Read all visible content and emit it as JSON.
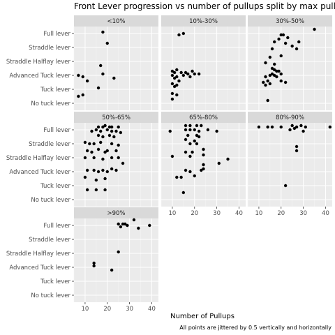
{
  "chart_data": {
    "type": "scatter",
    "title": "Front Lever progression vs number of pullups split by max pullup",
    "xlabel": "Number of Pullups",
    "ylabel": "",
    "caption": "All points are jittered by 0.5 vertically and horizontally",
    "xlim": [
      5,
      43
    ],
    "x_ticks": [
      10,
      20,
      30,
      40
    ],
    "categories": [
      "No tuck lever",
      "Tuck lever",
      "Advanced Tuck lever",
      "Straddle Halflay lever",
      "Straddle lever",
      "Full lever"
    ],
    "grid": true,
    "facets": [
      {
        "label": "<10%",
        "points": [
          {
            "x": 18,
            "y": 5.1
          },
          {
            "x": 20,
            "y": 4.3
          },
          {
            "x": 17,
            "y": 2.7
          },
          {
            "x": 18,
            "y": 2.1
          },
          {
            "x": 7,
            "y": 2.0
          },
          {
            "x": 9,
            "y": 1.9
          },
          {
            "x": 11,
            "y": 1.6
          },
          {
            "x": 23,
            "y": 1.8
          },
          {
            "x": 16,
            "y": 1.1
          },
          {
            "x": 7,
            "y": 0.5
          },
          {
            "x": 9,
            "y": 0.6
          }
        ]
      },
      {
        "label": "10%-30%",
        "points": [
          {
            "x": 13,
            "y": 4.9
          },
          {
            "x": 15,
            "y": 5.0
          },
          {
            "x": 10,
            "y": 2.3
          },
          {
            "x": 11,
            "y": 2.2
          },
          {
            "x": 12,
            "y": 2.4
          },
          {
            "x": 14,
            "y": 2.2
          },
          {
            "x": 15,
            "y": 2.0
          },
          {
            "x": 16,
            "y": 2.2
          },
          {
            "x": 17,
            "y": 2.1
          },
          {
            "x": 19,
            "y": 2.3
          },
          {
            "x": 20,
            "y": 2.1
          },
          {
            "x": 22,
            "y": 2.1
          },
          {
            "x": 10,
            "y": 2.0
          },
          {
            "x": 12,
            "y": 1.9
          },
          {
            "x": 11,
            "y": 1.8
          },
          {
            "x": 13,
            "y": 1.6
          },
          {
            "x": 18,
            "y": 1.9
          },
          {
            "x": 10,
            "y": 1.4
          },
          {
            "x": 11,
            "y": 1.2
          },
          {
            "x": 12,
            "y": 1.3
          },
          {
            "x": 10,
            "y": 0.7
          },
          {
            "x": 12,
            "y": 0.6
          },
          {
            "x": 10,
            "y": 0.3
          }
        ]
      },
      {
        "label": "30%-50%",
        "points": [
          {
            "x": 35,
            "y": 5.3
          },
          {
            "x": 20,
            "y": 4.9
          },
          {
            "x": 21,
            "y": 4.9
          },
          {
            "x": 23,
            "y": 4.7
          },
          {
            "x": 19,
            "y": 4.6
          },
          {
            "x": 17,
            "y": 4.4
          },
          {
            "x": 28,
            "y": 4.4
          },
          {
            "x": 25,
            "y": 4.1
          },
          {
            "x": 16,
            "y": 3.9
          },
          {
            "x": 22,
            "y": 4.3
          },
          {
            "x": 27,
            "y": 3.9
          },
          {
            "x": 15,
            "y": 3.3
          },
          {
            "x": 20,
            "y": 3.4
          },
          {
            "x": 13,
            "y": 2.9
          },
          {
            "x": 17,
            "y": 2.8
          },
          {
            "x": 16,
            "y": 2.5
          },
          {
            "x": 17,
            "y": 2.4
          },
          {
            "x": 18,
            "y": 2.3
          },
          {
            "x": 19,
            "y": 2.3
          },
          {
            "x": 20,
            "y": 2.1
          },
          {
            "x": 16,
            "y": 2.1
          },
          {
            "x": 15,
            "y": 2.0
          },
          {
            "x": 17,
            "y": 2.0
          },
          {
            "x": 18,
            "y": 1.9
          },
          {
            "x": 13,
            "y": 1.9
          },
          {
            "x": 14,
            "y": 1.6
          },
          {
            "x": 15,
            "y": 1.4
          },
          {
            "x": 12,
            "y": 1.5
          },
          {
            "x": 13,
            "y": 1.3
          },
          {
            "x": 20,
            "y": 1.6
          },
          {
            "x": 22,
            "y": 1.5
          },
          {
            "x": 14,
            "y": 0.2
          }
        ]
      },
      {
        "label": "50%-65%",
        "points": [
          {
            "x": 16,
            "y": 5.2
          },
          {
            "x": 18,
            "y": 5.2
          },
          {
            "x": 19,
            "y": 5.3
          },
          {
            "x": 21,
            "y": 5.2
          },
          {
            "x": 22,
            "y": 5.2
          },
          {
            "x": 25,
            "y": 5.2
          },
          {
            "x": 13,
            "y": 4.9
          },
          {
            "x": 15,
            "y": 5.0
          },
          {
            "x": 17,
            "y": 4.9
          },
          {
            "x": 20,
            "y": 5.0
          },
          {
            "x": 22,
            "y": 4.9
          },
          {
            "x": 24,
            "y": 4.9
          },
          {
            "x": 26,
            "y": 4.8
          },
          {
            "x": 16,
            "y": 4.6
          },
          {
            "x": 18,
            "y": 4.5
          },
          {
            "x": 21,
            "y": 4.6
          },
          {
            "x": 23,
            "y": 4.5
          },
          {
            "x": 10,
            "y": 4.1
          },
          {
            "x": 12,
            "y": 4.0
          },
          {
            "x": 14,
            "y": 4.0
          },
          {
            "x": 17,
            "y": 4.1
          },
          {
            "x": 22,
            "y": 4.0
          },
          {
            "x": 25,
            "y": 3.9
          },
          {
            "x": 11,
            "y": 3.5
          },
          {
            "x": 13,
            "y": 3.4
          },
          {
            "x": 16,
            "y": 3.6
          },
          {
            "x": 19,
            "y": 3.4
          },
          {
            "x": 20,
            "y": 3.5
          },
          {
            "x": 24,
            "y": 3.5
          },
          {
            "x": 10,
            "y": 3.0
          },
          {
            "x": 14,
            "y": 3.0
          },
          {
            "x": 18,
            "y": 2.9
          },
          {
            "x": 22,
            "y": 3.0
          },
          {
            "x": 25,
            "y": 3.0
          },
          {
            "x": 27,
            "y": 2.6
          },
          {
            "x": 11,
            "y": 2.1
          },
          {
            "x": 14,
            "y": 2.1
          },
          {
            "x": 16,
            "y": 2.0
          },
          {
            "x": 18,
            "y": 2.1
          },
          {
            "x": 20,
            "y": 2.0
          },
          {
            "x": 22,
            "y": 2.2
          },
          {
            "x": 24,
            "y": 2.1
          },
          {
            "x": 10,
            "y": 1.6
          },
          {
            "x": 15,
            "y": 1.4
          },
          {
            "x": 19,
            "y": 1.5
          },
          {
            "x": 11,
            "y": 0.7
          },
          {
            "x": 15,
            "y": 0.7
          },
          {
            "x": 19,
            "y": 0.7
          }
        ]
      },
      {
        "label": "65%-80%",
        "points": [
          {
            "x": 16,
            "y": 5.3
          },
          {
            "x": 18,
            "y": 5.3
          },
          {
            "x": 21,
            "y": 5.3
          },
          {
            "x": 23,
            "y": 5.3
          },
          {
            "x": 9,
            "y": 4.9
          },
          {
            "x": 16,
            "y": 5.0
          },
          {
            "x": 18,
            "y": 5.0
          },
          {
            "x": 20,
            "y": 5.0
          },
          {
            "x": 22,
            "y": 4.9
          },
          {
            "x": 26,
            "y": 5.0
          },
          {
            "x": 30,
            "y": 4.9
          },
          {
            "x": 17,
            "y": 4.6
          },
          {
            "x": 21,
            "y": 4.6
          },
          {
            "x": 22,
            "y": 4.5
          },
          {
            "x": 16,
            "y": 4.3
          },
          {
            "x": 20,
            "y": 4.2
          },
          {
            "x": 18,
            "y": 4.0
          },
          {
            "x": 21,
            "y": 4.0
          },
          {
            "x": 16,
            "y": 3.4
          },
          {
            "x": 19,
            "y": 3.4
          },
          {
            "x": 24,
            "y": 3.6
          },
          {
            "x": 10,
            "y": 3.1
          },
          {
            "x": 18,
            "y": 3.1
          },
          {
            "x": 24,
            "y": 3.2
          },
          {
            "x": 35,
            "y": 2.9
          },
          {
            "x": 31,
            "y": 2.6
          },
          {
            "x": 24,
            "y": 2.5
          },
          {
            "x": 16,
            "y": 2.1
          },
          {
            "x": 18,
            "y": 2.0
          },
          {
            "x": 23,
            "y": 2.1
          },
          {
            "x": 24,
            "y": 2.2
          },
          {
            "x": 12,
            "y": 1.6
          },
          {
            "x": 14,
            "y": 1.6
          },
          {
            "x": 20,
            "y": 1.7
          },
          {
            "x": 15,
            "y": 0.5
          }
        ]
      },
      {
        "label": "80%-90%",
        "points": [
          {
            "x": 10,
            "y": 5.2
          },
          {
            "x": 14,
            "y": 5.2
          },
          {
            "x": 16,
            "y": 5.2
          },
          {
            "x": 20,
            "y": 5.2
          },
          {
            "x": 25,
            "y": 5.3
          },
          {
            "x": 27,
            "y": 5.2
          },
          {
            "x": 29,
            "y": 5.3
          },
          {
            "x": 31,
            "y": 5.2
          },
          {
            "x": 42,
            "y": 5.2
          },
          {
            "x": 24,
            "y": 5.0
          },
          {
            "x": 26,
            "y": 5.1
          },
          {
            "x": 30,
            "y": 4.9
          },
          {
            "x": 27,
            "y": 3.8
          },
          {
            "x": 27,
            "y": 3.5
          },
          {
            "x": 22,
            "y": 1.0
          }
        ]
      },
      {
        "label": ">90%",
        "points": [
          {
            "x": 32,
            "y": 5.4
          },
          {
            "x": 25,
            "y": 5.1
          },
          {
            "x": 27,
            "y": 5.1
          },
          {
            "x": 28,
            "y": 5.1
          },
          {
            "x": 29,
            "y": 5.0
          },
          {
            "x": 39,
            "y": 5.0
          },
          {
            "x": 26,
            "y": 4.9
          },
          {
            "x": 34,
            "y": 4.8
          },
          {
            "x": 25,
            "y": 3.1
          },
          {
            "x": 14,
            "y": 2.3
          },
          {
            "x": 14,
            "y": 2.1
          },
          {
            "x": 22,
            "y": 1.8
          }
        ]
      }
    ]
  }
}
